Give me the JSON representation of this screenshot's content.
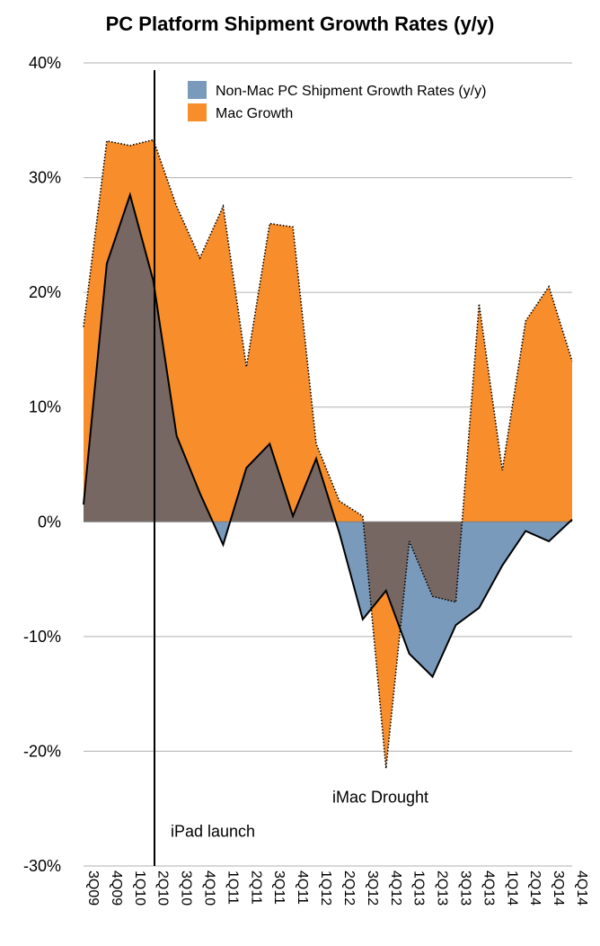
{
  "chart_data": {
    "type": "area",
    "title": "PC Platform Shipment Growth Rates (y/y)",
    "xlabel": "",
    "ylabel": "",
    "ylim": [
      -30,
      40
    ],
    "yticks": [
      "40%",
      "30%",
      "20%",
      "10%",
      "0%",
      "-10%",
      "-20%",
      "-30%"
    ],
    "ytick_values": [
      40,
      30,
      20,
      10,
      0,
      -10,
      -20,
      -30
    ],
    "categories": [
      "3Q09",
      "4Q09",
      "1Q10",
      "2Q10",
      "3Q10",
      "4Q10",
      "1Q11",
      "2Q11",
      "3Q11",
      "4Q11",
      "1Q12",
      "2Q12",
      "3Q12",
      "4Q12",
      "1Q13",
      "2Q13",
      "3Q13",
      "4Q13",
      "1Q14",
      "2Q14",
      "3Q14",
      "4Q14"
    ],
    "x": [
      "3Q09",
      "",
      "4Q09",
      "",
      "1Q10",
      "",
      "2Q10",
      "",
      "3Q10",
      "",
      "4Q10",
      "",
      "1Q11",
      "",
      "2Q11",
      "",
      "3Q11",
      "",
      "4Q11",
      "",
      "1Q12",
      "",
      "2Q12",
      "",
      "3Q12",
      "",
      "4Q12",
      "",
      "1Q13",
      "",
      "2Q13",
      "",
      "3Q13",
      "",
      "4Q13",
      "",
      "1Q14",
      "",
      "2Q14",
      "",
      "3Q14",
      "",
      "4Q14"
    ],
    "series": [
      {
        "name": "Non-Mac PC Shipment Growth Rates (y/y)",
        "color": "#7a9abc",
        "values": [
          1.5,
          22.5,
          28.5,
          21.0,
          7.5,
          2.5,
          -2.0,
          4.7,
          6.8,
          0.5,
          5.5,
          -1.0,
          -8.5,
          -6.0,
          -11.5,
          -13.5,
          -9.0,
          -7.5,
          -3.8,
          -0.8,
          -1.7,
          0.2
        ]
      },
      {
        "name": "Mac Growth",
        "color": "#f78e2b",
        "values": [
          17.0,
          33.2,
          32.8,
          33.3,
          27.5,
          23.0,
          27.5,
          13.5,
          26.0,
          25.7,
          6.8,
          1.8,
          0.5,
          -21.5,
          -1.7,
          -6.5,
          -7.0,
          19.0,
          4.5,
          17.5,
          20.5,
          14.0
        ]
      }
    ],
    "overlap_color": "#766762",
    "annotations": [
      {
        "text": "iPad launch",
        "x": "2Q10",
        "y": -27
      },
      {
        "text": "iMac Drought",
        "x": "4Q12",
        "y": -24
      }
    ],
    "grid": true,
    "legend": "top-right"
  }
}
